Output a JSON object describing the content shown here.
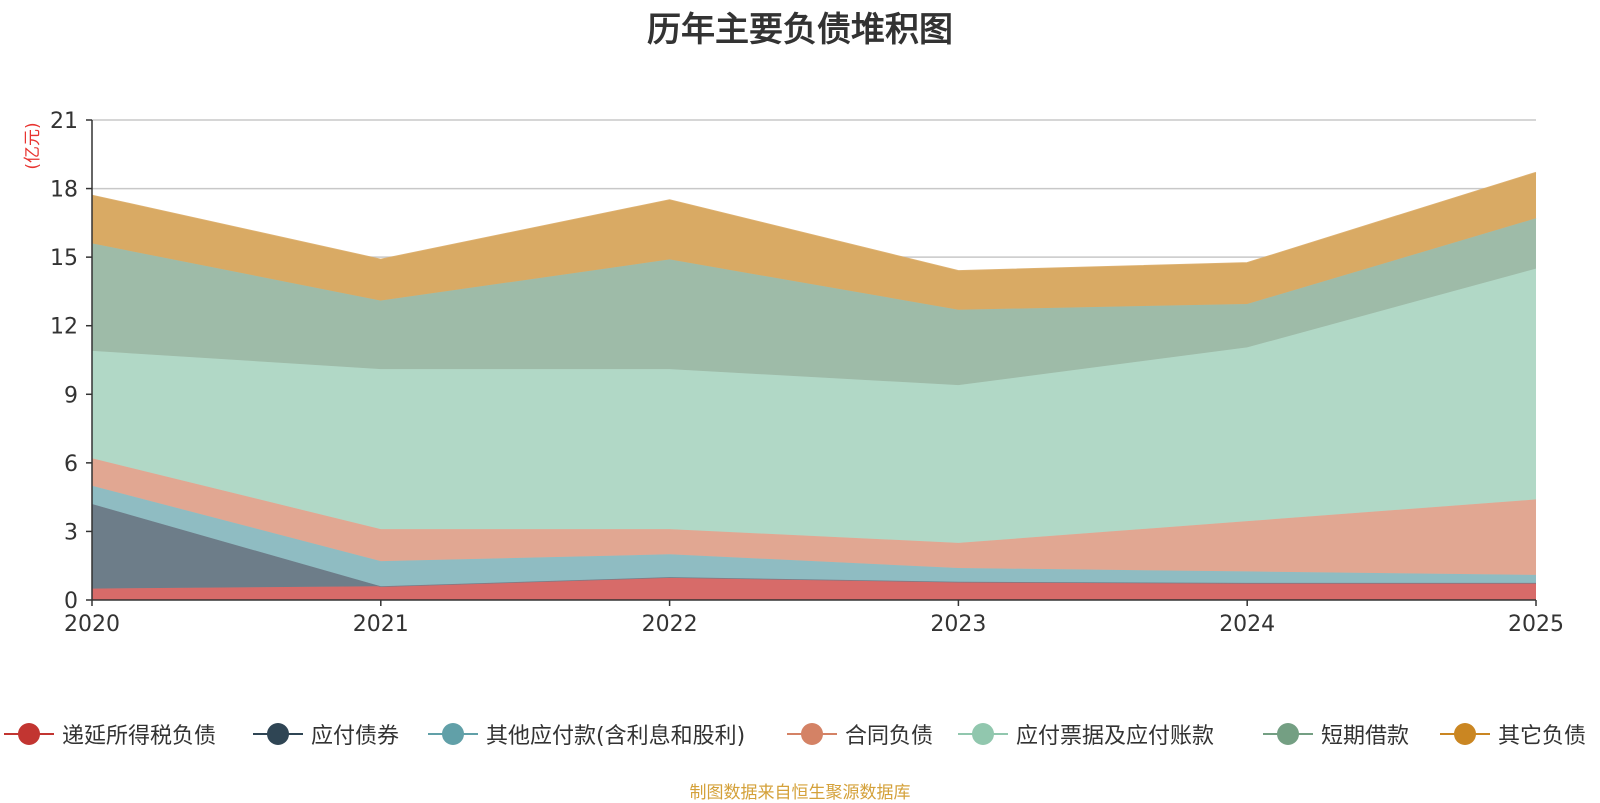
{
  "chart_data": {
    "type": "area",
    "stacked": true,
    "title": "历年主要负债堆积图",
    "ylabel": "(亿元)",
    "xlabel": "",
    "x": [
      "2020",
      "2021",
      "2022",
      "2023",
      "2024",
      "2025"
    ],
    "ylim": [
      0,
      21
    ],
    "yticks": [
      0,
      3,
      6,
      9,
      12,
      15,
      18,
      21
    ],
    "grid": true,
    "legend_position": "bottom",
    "series": [
      {
        "name": "递延所得税负债",
        "color": "#c23531",
        "fill": "#d76b69",
        "values": [
          0.5,
          0.6,
          1.0,
          0.8,
          0.75,
          0.75
        ]
      },
      {
        "name": "应付债券",
        "color": "#2f4554",
        "fill": "#6d7d89",
        "values": [
          3.7,
          0.0,
          0.0,
          0.0,
          0.0,
          0.0
        ]
      },
      {
        "name": "其他应付款(含利息和股利)",
        "color": "#61a0a8",
        "fill": "#8fbcc2",
        "values": [
          0.8,
          1.1,
          1.0,
          0.6,
          0.5,
          0.35
        ]
      },
      {
        "name": "合同负债",
        "color": "#d48265",
        "fill": "#e1a792",
        "values": [
          1.2,
          1.4,
          1.1,
          1.1,
          2.2,
          3.3
        ]
      },
      {
        "name": "应付票据及应付账款",
        "color": "#91c7ae",
        "fill": "#b1d8c6",
        "values": [
          4.7,
          7.0,
          7.0,
          6.9,
          7.6,
          10.1
        ]
      },
      {
        "name": "短期借款",
        "color": "#749f83",
        "fill": "#9ebba8",
        "values": [
          4.7,
          3.0,
          4.8,
          3.3,
          1.9,
          2.2
        ]
      },
      {
        "name": "其它负债",
        "color": "#ca8622",
        "fill": "#d9aa64",
        "values": [
          2.1,
          1.8,
          2.6,
          1.7,
          1.8,
          2.0
        ]
      }
    ]
  },
  "footer": {
    "source": "制图数据来自恒生聚源数据库"
  }
}
